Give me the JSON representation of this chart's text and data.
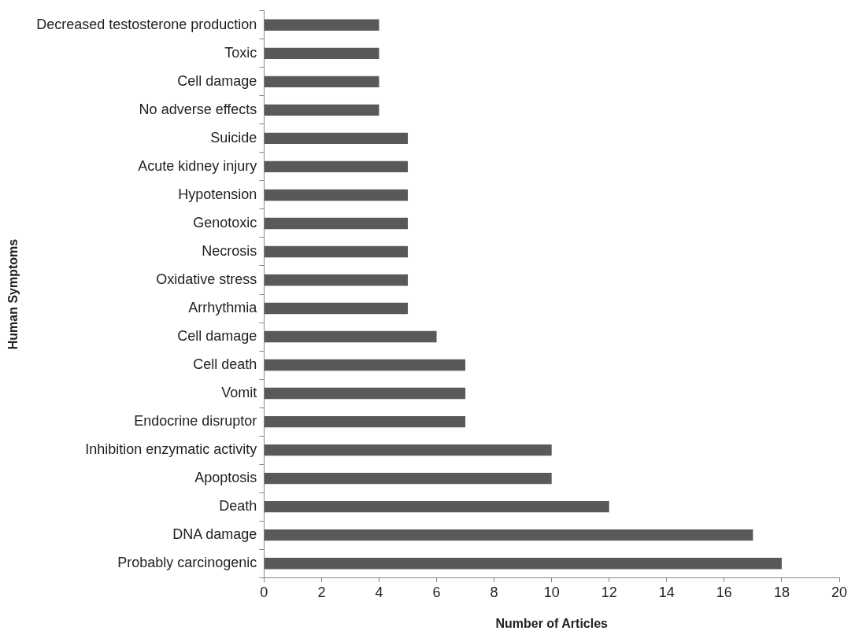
{
  "chart_data": {
    "type": "bar",
    "orientation": "horizontal",
    "xlabel": "Number of Articles",
    "ylabel": "Human Symptoms",
    "categories": [
      "Decreased testosterone production",
      "Toxic",
      "Cell damage",
      "No adverse effects",
      "Suicide",
      "Acute kidney injury",
      "Hypotension",
      "Genotoxic",
      "Necrosis",
      "Oxidative stress",
      "Arrhythmia",
      "Cell damage",
      "Cell death",
      "Vomit",
      "Endocrine disruptor",
      "Inhibition enzymatic activity",
      "Apoptosis",
      "Death",
      "DNA damage",
      "Probably carcinogenic"
    ],
    "values": [
      4,
      4,
      4,
      4,
      5,
      5,
      5,
      5,
      5,
      5,
      5,
      6,
      7,
      7,
      7,
      10,
      10,
      12,
      17,
      18
    ],
    "color": "#595959",
    "xlim": [
      0,
      20
    ],
    "xticks": [
      0,
      2,
      4,
      6,
      8,
      10,
      12,
      14,
      16,
      18,
      20
    ],
    "grid": false,
    "legend": false
  }
}
